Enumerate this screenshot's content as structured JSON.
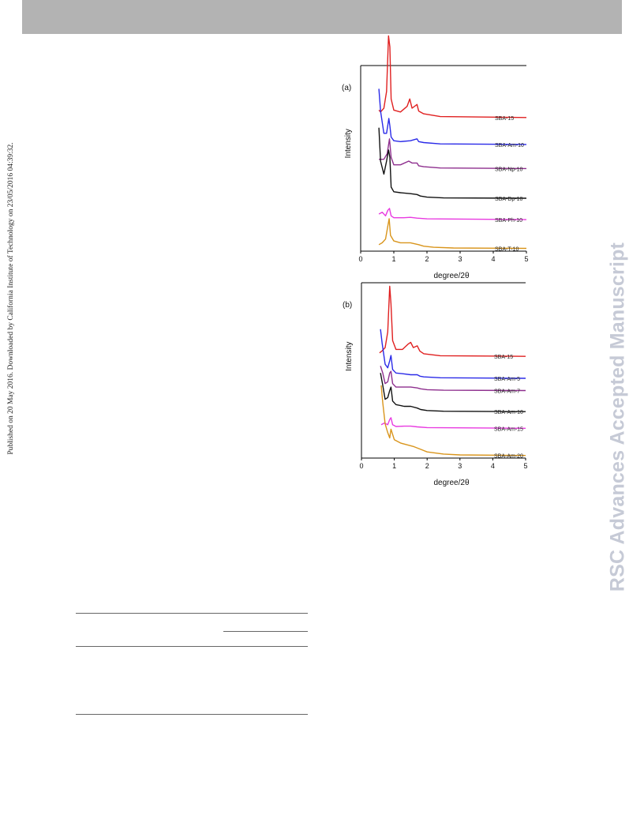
{
  "side_note": "Published on 20 May 2016. Downloaded by California Institute of Technology on 23/05/2016 04:39:32.",
  "watermark": "RSC Advances Accepted Manuscript",
  "colors": {
    "header_bar": "#b3b3b3",
    "red": "#e02020",
    "blue": "#2a2ae8",
    "purple": "#8e2f8e",
    "black": "#111111",
    "magenta": "#e83ae0",
    "orange": "#d9951c",
    "watermark": "#c6cad6"
  },
  "chart_data": [
    {
      "type": "line",
      "panel_label": "(a)",
      "xlabel": "degree/2θ",
      "ylabel": "Intensity",
      "xlim": [
        0,
        5
      ],
      "x_ticks": [
        "0",
        "1",
        "2",
        "3",
        "4",
        "5"
      ],
      "y_ticks": "none",
      "legend": "none (series labelled at right end of each curve)",
      "series": [
        {
          "name": "SBA-15",
          "color": "red",
          "offset": 0.72,
          "x": [
            0.55,
            0.6,
            0.7,
            0.78,
            0.84,
            0.88,
            0.92,
            1.0,
            1.2,
            1.4,
            1.48,
            1.55,
            1.7,
            1.75,
            1.9,
            2.4,
            5.0
          ],
          "y": [
            0.04,
            0.03,
            0.05,
            0.14,
            0.44,
            0.38,
            0.1,
            0.04,
            0.03,
            0.06,
            0.1,
            0.05,
            0.07,
            0.035,
            0.02,
            0.005,
            0.0
          ]
        },
        {
          "name": "SBA-Am-10",
          "color": "blue",
          "offset": 0.575,
          "x": [
            0.55,
            0.6,
            0.7,
            0.78,
            0.85,
            0.88,
            0.92,
            1.0,
            1.2,
            1.5,
            1.7,
            1.75,
            1.9,
            2.4,
            5.0
          ],
          "y": [
            0.3,
            0.18,
            0.06,
            0.06,
            0.14,
            0.1,
            0.04,
            0.02,
            0.015,
            0.02,
            0.03,
            0.015,
            0.01,
            0.003,
            0.0
          ]
        },
        {
          "name": "SBA-Np-10",
          "color": "purple",
          "offset": 0.445,
          "x": [
            0.55,
            0.7,
            0.8,
            0.87,
            0.92,
            1.0,
            1.2,
            1.45,
            1.55,
            1.7,
            1.75,
            1.9,
            2.4,
            5.0
          ],
          "y": [
            0.05,
            0.05,
            0.08,
            0.16,
            0.06,
            0.02,
            0.02,
            0.04,
            0.03,
            0.03,
            0.015,
            0.01,
            0.003,
            0.0
          ]
        },
        {
          "name": "SBA-Dp-10",
          "color": "black",
          "offset": 0.285,
          "x": [
            0.55,
            0.6,
            0.7,
            0.78,
            0.84,
            0.88,
            0.92,
            1.0,
            1.2,
            1.5,
            1.7,
            1.8,
            2.0,
            2.5,
            5.0
          ],
          "y": [
            0.38,
            0.2,
            0.13,
            0.2,
            0.26,
            0.22,
            0.06,
            0.035,
            0.03,
            0.025,
            0.02,
            0.012,
            0.006,
            0.002,
            0.0
          ]
        },
        {
          "name": "SBA-Ph-10",
          "color": "magenta",
          "offset": 0.17,
          "x": [
            0.55,
            0.65,
            0.75,
            0.82,
            0.87,
            0.92,
            1.0,
            1.3,
            1.5,
            1.7,
            2.0,
            5.0
          ],
          "y": [
            0.03,
            0.04,
            0.02,
            0.05,
            0.06,
            0.02,
            0.01,
            0.01,
            0.012,
            0.008,
            0.004,
            0.0
          ]
        },
        {
          "name": "SBA-T-10",
          "color": "orange",
          "offset": 0.015,
          "x": [
            0.55,
            0.65,
            0.75,
            0.82,
            0.86,
            0.9,
            1.0,
            1.2,
            1.5,
            1.75,
            1.9,
            2.2,
            2.8,
            5.0
          ],
          "y": [
            0.02,
            0.03,
            0.05,
            0.12,
            0.16,
            0.07,
            0.04,
            0.03,
            0.03,
            0.02,
            0.012,
            0.006,
            0.002,
            0.0
          ]
        }
      ]
    },
    {
      "type": "line",
      "panel_label": "(b)",
      "xlabel": "degree/2θ",
      "ylabel": "Intensity",
      "xlim": [
        0,
        5
      ],
      "x_ticks": [
        "0",
        "1",
        "2",
        "3",
        "4",
        "5"
      ],
      "y_ticks": "none",
      "legend": "none (series labelled at right end of each curve)",
      "series": [
        {
          "name": "SBA-15",
          "color": "red",
          "offset": 0.58,
          "x": [
            0.55,
            0.62,
            0.72,
            0.8,
            0.86,
            0.9,
            0.95,
            1.05,
            1.25,
            1.42,
            1.5,
            1.58,
            1.7,
            1.78,
            1.9,
            2.4,
            5.0
          ],
          "y": [
            0.02,
            0.03,
            0.05,
            0.14,
            0.4,
            0.3,
            0.09,
            0.04,
            0.04,
            0.07,
            0.08,
            0.05,
            0.06,
            0.03,
            0.015,
            0.004,
            0.0
          ]
        },
        {
          "name": "SBA-Am-5",
          "color": "blue",
          "offset": 0.455,
          "x": [
            0.58,
            0.63,
            0.72,
            0.8,
            0.86,
            0.9,
            0.95,
            1.05,
            1.3,
            1.5,
            1.7,
            1.78,
            1.9,
            2.4,
            5.0
          ],
          "y": [
            0.28,
            0.2,
            0.08,
            0.06,
            0.1,
            0.13,
            0.05,
            0.03,
            0.025,
            0.02,
            0.02,
            0.012,
            0.008,
            0.003,
            0.0
          ]
        },
        {
          "name": "SBA-Am-7",
          "color": "purple",
          "offset": 0.385,
          "x": [
            0.58,
            0.65,
            0.72,
            0.8,
            0.86,
            0.9,
            0.95,
            1.05,
            1.3,
            1.5,
            1.7,
            1.8,
            2.0,
            2.5,
            5.0
          ],
          "y": [
            0.14,
            0.1,
            0.04,
            0.05,
            0.1,
            0.11,
            0.04,
            0.02,
            0.02,
            0.02,
            0.015,
            0.01,
            0.005,
            0.002,
            0.0
          ]
        },
        {
          "name": "SBA-Am-10",
          "color": "black",
          "offset": 0.265,
          "x": [
            0.58,
            0.64,
            0.72,
            0.8,
            0.86,
            0.9,
            0.95,
            1.05,
            1.3,
            1.5,
            1.7,
            1.8,
            2.0,
            2.5,
            5.0
          ],
          "y": [
            0.22,
            0.16,
            0.07,
            0.08,
            0.12,
            0.14,
            0.06,
            0.04,
            0.03,
            0.03,
            0.02,
            0.012,
            0.006,
            0.002,
            0.0
          ]
        },
        {
          "name": "SBA-Am-15",
          "color": "magenta",
          "offset": 0.17,
          "x": [
            0.6,
            0.7,
            0.8,
            0.86,
            0.9,
            0.95,
            1.05,
            1.3,
            1.5,
            1.7,
            2.0,
            5.0
          ],
          "y": [
            0.02,
            0.03,
            0.02,
            0.05,
            0.06,
            0.02,
            0.01,
            0.012,
            0.012,
            0.008,
            0.004,
            0.0
          ]
        },
        {
          "name": "SBA-Am-20",
          "color": "orange",
          "offset": 0.015,
          "x": [
            0.6,
            0.65,
            0.72,
            0.8,
            0.86,
            0.9,
            1.0,
            1.2,
            1.4,
            1.6,
            1.8,
            2.0,
            2.5,
            3.0,
            5.0
          ],
          "y": [
            0.4,
            0.3,
            0.18,
            0.13,
            0.1,
            0.15,
            0.09,
            0.07,
            0.06,
            0.05,
            0.035,
            0.02,
            0.008,
            0.003,
            0.0
          ]
        }
      ]
    }
  ]
}
